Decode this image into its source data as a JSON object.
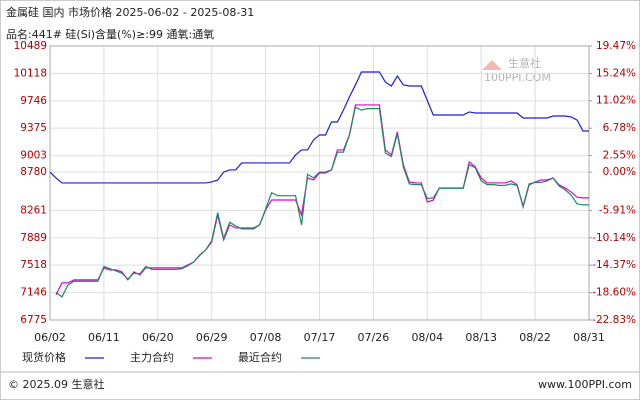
{
  "chart_data": {
    "type": "line",
    "title": "金属硅 国内 市场价格 2025-06-02 - 2025-08-31",
    "subtitle": "品名:441# 硅(Si)含量(%)≥:99 通氧:通氧",
    "watermark": "生意社",
    "watermark_sub": "100PPI.COM",
    "footer_left": "© 2025.09 生意社",
    "footer_right": "www.100PPI.com",
    "categories": [
      "06/02",
      null,
      null,
      null,
      null,
      null,
      null,
      null,
      null,
      "06/11",
      null,
      null,
      null,
      null,
      null,
      null,
      null,
      null,
      "06/20",
      null,
      null,
      null,
      null,
      null,
      null,
      null,
      null,
      "06/29",
      null,
      null,
      null,
      null,
      null,
      null,
      null,
      null,
      "07/08",
      null,
      null,
      null,
      null,
      null,
      null,
      null,
      null,
      "07/17",
      null,
      null,
      null,
      null,
      null,
      null,
      null,
      null,
      "07/26",
      null,
      null,
      null,
      null,
      null,
      null,
      null,
      null,
      "08/04",
      null,
      null,
      null,
      null,
      null,
      null,
      null,
      null,
      "08/13",
      null,
      null,
      null,
      null,
      null,
      null,
      null,
      null,
      "08/22",
      null,
      null,
      null,
      null,
      null,
      null,
      null,
      null,
      "08/31"
    ],
    "series": [
      {
        "name": "现货价格",
        "color": "#1f1fd8",
        "values": [
          8780,
          8700,
          8633,
          8633,
          8633,
          8633,
          8633,
          8633,
          8633,
          8633,
          8633,
          8633,
          8633,
          8633,
          8633,
          8633,
          8633,
          8633,
          8633,
          8633,
          8633,
          8633,
          8633,
          8633,
          8633,
          8633,
          8633,
          8646,
          8673,
          8780,
          8809,
          8809,
          8904,
          8904,
          8904,
          8904,
          8904,
          8904,
          8904,
          8904,
          8904,
          9012,
          9080,
          9080,
          9215,
          9283,
          9283,
          9459,
          9459,
          9622,
          9800,
          9961,
          10137,
          10137,
          10137,
          10137,
          10000,
          9947,
          10082,
          9961,
          9947,
          9947,
          9947,
          9750,
          9554,
          9554,
          9554,
          9554,
          9554,
          9554,
          9595,
          9581,
          9581,
          9581,
          9581,
          9581,
          9581,
          9581,
          9581,
          9513,
          9513,
          9513,
          9513,
          9513,
          9540,
          9540,
          9540,
          9527,
          9486,
          9337,
          9337
        ]
      },
      {
        "name": "主力合约",
        "color": "#e000d8",
        "values": [
          null,
          7115,
          7278,
          7278,
          7319,
          7319,
          7319,
          7319,
          7319,
          7481,
          7454,
          7454,
          7427,
          7319,
          7427,
          7386,
          7481,
          7481,
          7481,
          7481,
          7481,
          7481,
          7481,
          7522,
          7560,
          7657,
          7725,
          7833,
          8199,
          7860,
          8064,
          8023,
          8023,
          8023,
          8023,
          8064,
          8267,
          8402,
          8402,
          8402,
          8402,
          8402,
          8200,
          8700,
          8673,
          8768,
          8768,
          8809,
          9080,
          9080,
          9283,
          9690,
          9690,
          9690,
          9690,
          9690,
          9080,
          9012,
          9324,
          8880,
          8646,
          8633,
          8633,
          8375,
          8400,
          8565,
          8565,
          8565,
          8565,
          8565,
          8917,
          8850,
          8700,
          8633,
          8633,
          8633,
          8633,
          8660,
          8606,
          8307,
          8606,
          8646,
          8673,
          8673,
          8700,
          8606,
          8565,
          8511,
          8440,
          8430,
          8430
        ]
      },
      {
        "name": "最近合约",
        "color": "#1e8a5e",
        "values": [
          null,
          7150,
          7088,
          7250,
          7300,
          7300,
          7300,
          7300,
          7300,
          7500,
          7470,
          7440,
          7410,
          7330,
          7410,
          7400,
          7500,
          7460,
          7460,
          7460,
          7460,
          7460,
          7470,
          7510,
          7560,
          7650,
          7725,
          7850,
          8230,
          7880,
          8100,
          8050,
          8010,
          8010,
          8010,
          8064,
          8280,
          8500,
          8460,
          8460,
          8460,
          8460,
          8064,
          8750,
          8700,
          8780,
          8780,
          8809,
          9050,
          9050,
          9283,
          9660,
          9620,
          9640,
          9640,
          9640,
          9040,
          8990,
          9300,
          8850,
          8620,
          8610,
          8610,
          8420,
          8430,
          8560,
          8560,
          8560,
          8560,
          8560,
          8880,
          8840,
          8660,
          8610,
          8610,
          8600,
          8600,
          8620,
          8600,
          8320,
          8620,
          8640,
          8640,
          8660,
          8700,
          8590,
          8540,
          8470,
          8350,
          8335,
          8335
        ]
      }
    ],
    "ylim": [
      6775,
      10489
    ],
    "yticks": [
      6775,
      7146,
      7518,
      7889,
      8261,
      8780,
      9003,
      9375,
      9746,
      10118,
      10489
    ],
    "y2lim": [
      -22.83,
      19.47
    ],
    "y2ticks": [
      {
        "value": -22.83,
        "label": "-22.83%"
      },
      {
        "value": -18.6,
        "label": "-18.60%"
      },
      {
        "value": -14.37,
        "label": "-14.37%"
      },
      {
        "value": -10.14,
        "label": "-10.14%"
      },
      {
        "value": -5.91,
        "label": "-5.91%"
      },
      {
        "value": 0,
        "label": "0.00%"
      },
      {
        "value": 2.55,
        "label": "2.55%"
      },
      {
        "value": 6.78,
        "label": "6.78%"
      },
      {
        "value": 11.02,
        "label": "11.02%"
      },
      {
        "value": 15.24,
        "label": "15.24%"
      },
      {
        "value": 19.47,
        "label": "19.47%"
      }
    ],
    "grid": true
  }
}
